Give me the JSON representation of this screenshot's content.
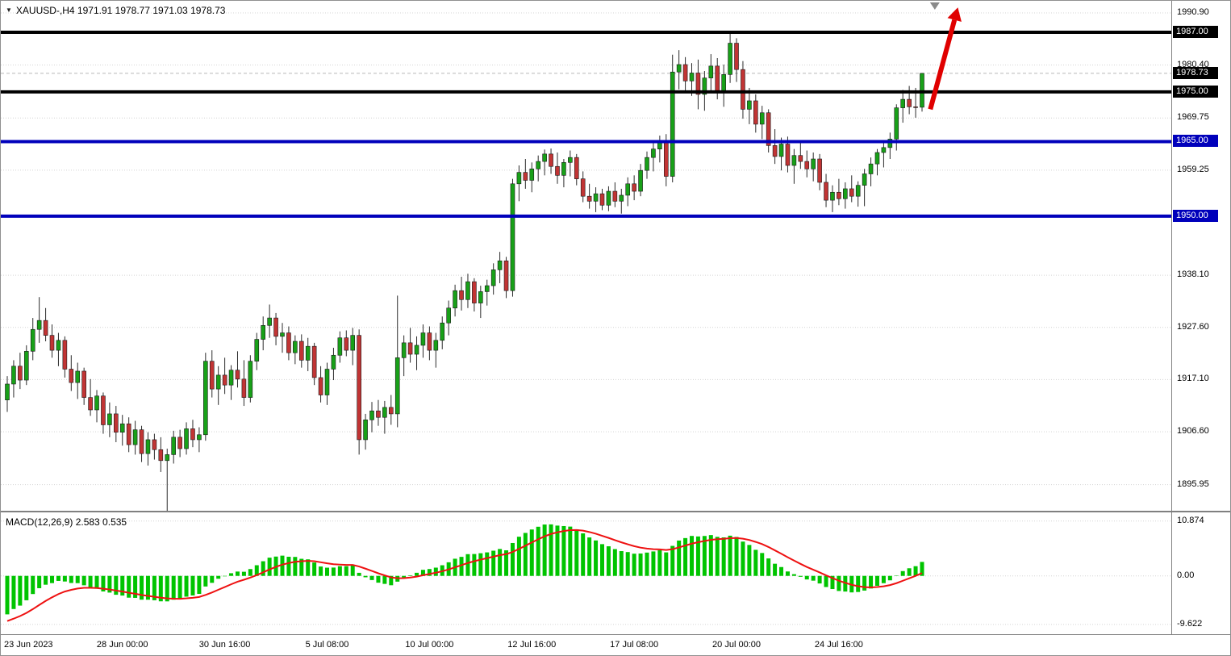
{
  "title": {
    "text": "XAUUSD-,H4 1971.91 1978.77 1971.03 1978.73"
  },
  "colors": {
    "up": "#18a018",
    "down": "#c13434",
    "wick": "#2b2b2b",
    "macd_hist": "#00c400",
    "macd_signal": "#ee1111",
    "grid": "#d4d4d4",
    "current_price_line": "#b6b6b6",
    "tag_black": "#000000",
    "tag_blue": "#0000bb",
    "arrow": "#e00000",
    "shift_marker": "#8a8a8a",
    "axis_text": "#000000"
  },
  "price_axis": {
    "labels": [
      {
        "text": "1990.90",
        "value": 1990.9
      },
      {
        "text": "1980.40",
        "value": 1980.4
      },
      {
        "text": "1969.75",
        "value": 1969.75
      },
      {
        "text": "1959.25",
        "value": 1959.25
      },
      {
        "text": "1938.10",
        "value": 1938.1
      },
      {
        "text": "1927.60",
        "value": 1927.6
      },
      {
        "text": "1917.10",
        "value": 1917.1
      },
      {
        "text": "1906.60",
        "value": 1906.6
      },
      {
        "text": "1895.95",
        "value": 1895.95
      }
    ],
    "tags": [
      {
        "text": "1987.00",
        "value": 1987.0,
        "color": "#000000"
      },
      {
        "text": "1978.73",
        "value": 1978.73,
        "color": "#000000"
      },
      {
        "text": "1975.00",
        "value": 1975.0,
        "color": "#000000"
      },
      {
        "text": "1965.00",
        "value": 1965.0,
        "color": "#0000bb"
      },
      {
        "text": "1950.00",
        "value": 1950.0,
        "color": "#0000bb"
      }
    ]
  },
  "time_axis": {
    "labels": [
      {
        "text": "23 Jun 2023",
        "index": 0
      },
      {
        "text": "28 Jun 00:00",
        "index": 18
      },
      {
        "text": "30 Jun 16:00",
        "index": 34
      },
      {
        "text": "5 Jul 08:00",
        "index": 50
      },
      {
        "text": "10 Jul 00:00",
        "index": 66
      },
      {
        "text": "12 Jul 16:00",
        "index": 82
      },
      {
        "text": "17 Jul 08:00",
        "index": 98
      },
      {
        "text": "20 Jul 00:00",
        "index": 114
      },
      {
        "text": "24 Jul 16:00",
        "index": 130
      }
    ]
  },
  "macd_axis": {
    "labels": [
      {
        "text": "10.874",
        "value": 10.874
      },
      {
        "text": "0.00",
        "value": 0
      },
      {
        "text": "-9.622",
        "value": -9.622
      }
    ]
  },
  "chart_data": {
    "type": "candlestick",
    "symbol": "XAUUSD-",
    "timeframe": "H4",
    "ohlc_current": {
      "open": 1971.91,
      "high": 1978.77,
      "low": 1971.03,
      "close": 1978.73
    },
    "current_price": 1978.73,
    "price_range": {
      "top": 1993.33,
      "bottom": 1890.7
    },
    "macd_range": {
      "top": 12.6,
      "bottom": -11.57
    },
    "hlines": [
      {
        "value": 1987.0,
        "color": "#000000",
        "width": 4
      },
      {
        "value": 1975.0,
        "color": "#000000",
        "width": 4
      },
      {
        "value": 1965.0,
        "color": "#0000bb",
        "width": 4
      },
      {
        "value": 1950.0,
        "color": "#0000bb",
        "width": 4
      }
    ],
    "candles": [
      [
        1913.0,
        1917.8,
        1910.6,
        1916.2
      ],
      [
        1916.2,
        1921.0,
        1913.5,
        1919.8
      ],
      [
        1919.8,
        1922.5,
        1915.2,
        1917.0
      ],
      [
        1917.0,
        1924.0,
        1916.0,
        1922.8
      ],
      [
        1922.8,
        1929.5,
        1921.0,
        1927.2
      ],
      [
        1927.2,
        1933.7,
        1924.5,
        1929.0
      ],
      [
        1929.0,
        1931.5,
        1924.8,
        1926.0
      ],
      [
        1926.0,
        1928.2,
        1921.5,
        1923.0
      ],
      [
        1923.0,
        1926.5,
        1919.8,
        1925.0
      ],
      [
        1925.0,
        1925.8,
        1917.5,
        1919.2
      ],
      [
        1919.2,
        1922.0,
        1914.8,
        1916.5
      ],
      [
        1916.5,
        1920.5,
        1913.2,
        1918.8
      ],
      [
        1918.8,
        1919.5,
        1912.0,
        1913.5
      ],
      [
        1913.5,
        1917.2,
        1909.8,
        1911.0
      ],
      [
        1911.0,
        1915.0,
        1908.5,
        1913.8
      ],
      [
        1913.8,
        1914.5,
        1906.2,
        1908.0
      ],
      [
        1908.0,
        1912.5,
        1905.5,
        1910.2
      ],
      [
        1910.2,
        1911.8,
        1904.5,
        1906.5
      ],
      [
        1906.5,
        1910.0,
        1903.8,
        1908.2
      ],
      [
        1908.2,
        1909.5,
        1902.5,
        1904.0
      ],
      [
        1904.0,
        1908.8,
        1902.0,
        1907.0
      ],
      [
        1907.0,
        1907.8,
        1900.5,
        1902.2
      ],
      [
        1902.2,
        1906.5,
        1899.8,
        1905.0
      ],
      [
        1905.0,
        1906.2,
        1901.0,
        1903.0
      ],
      [
        1903.0,
        1905.5,
        1898.5,
        1900.8
      ],
      [
        1900.8,
        1903.2,
        1890.3,
        1902.0
      ],
      [
        1902.0,
        1906.8,
        1900.2,
        1905.5
      ],
      [
        1905.5,
        1907.0,
        1901.5,
        1903.2
      ],
      [
        1903.2,
        1908.5,
        1902.0,
        1907.2
      ],
      [
        1907.2,
        1909.0,
        1903.5,
        1905.0
      ],
      [
        1905.0,
        1907.5,
        1902.5,
        1906.0
      ],
      [
        1906.0,
        1922.5,
        1904.8,
        1920.8
      ],
      [
        1920.8,
        1923.0,
        1913.5,
        1915.2
      ],
      [
        1915.2,
        1919.8,
        1912.0,
        1918.0
      ],
      [
        1918.0,
        1921.5,
        1914.2,
        1916.0
      ],
      [
        1916.0,
        1920.0,
        1913.0,
        1919.0
      ],
      [
        1919.0,
        1922.8,
        1915.5,
        1917.2
      ],
      [
        1917.2,
        1921.0,
        1911.8,
        1913.5
      ],
      [
        1913.5,
        1922.0,
        1912.5,
        1920.8
      ],
      [
        1920.8,
        1926.5,
        1919.0,
        1925.2
      ],
      [
        1925.2,
        1929.8,
        1923.0,
        1928.0
      ],
      [
        1928.0,
        1932.2,
        1925.5,
        1929.5
      ],
      [
        1929.5,
        1930.5,
        1924.0,
        1925.8
      ],
      [
        1925.8,
        1928.5,
        1922.5,
        1926.5
      ],
      [
        1926.5,
        1927.8,
        1921.0,
        1922.5
      ],
      [
        1922.5,
        1926.0,
        1920.2,
        1924.8
      ],
      [
        1924.8,
        1926.2,
        1919.5,
        1921.0
      ],
      [
        1921.0,
        1925.5,
        1918.8,
        1923.8
      ],
      [
        1923.8,
        1924.5,
        1916.0,
        1917.5
      ],
      [
        1917.5,
        1919.8,
        1912.5,
        1914.0
      ],
      [
        1914.0,
        1920.5,
        1912.0,
        1919.2
      ],
      [
        1919.2,
        1923.5,
        1917.0,
        1922.0
      ],
      [
        1922.0,
        1926.8,
        1920.5,
        1925.5
      ],
      [
        1925.5,
        1927.0,
        1921.8,
        1923.0
      ],
      [
        1923.0,
        1927.5,
        1920.0,
        1926.0
      ],
      [
        1926.0,
        1927.2,
        1902.0,
        1905.0
      ],
      [
        1905.0,
        1910.2,
        1903.0,
        1909.0
      ],
      [
        1909.0,
        1912.6,
        1906.5,
        1910.8
      ],
      [
        1910.8,
        1913.0,
        1907.8,
        1909.5
      ],
      [
        1909.5,
        1912.8,
        1906.2,
        1911.5
      ],
      [
        1911.5,
        1914.0,
        1908.0,
        1910.2
      ],
      [
        1910.2,
        1934.0,
        1907.5,
        1921.5
      ],
      [
        1921.5,
        1926.0,
        1917.8,
        1924.5
      ],
      [
        1924.5,
        1927.5,
        1920.5,
        1922.2
      ],
      [
        1922.2,
        1925.8,
        1919.0,
        1924.0
      ],
      [
        1924.0,
        1928.2,
        1921.5,
        1926.5
      ],
      [
        1926.5,
        1927.8,
        1921.0,
        1923.0
      ],
      [
        1923.0,
        1926.5,
        1919.5,
        1925.0
      ],
      [
        1925.0,
        1929.8,
        1923.2,
        1928.5
      ],
      [
        1928.5,
        1933.0,
        1926.0,
        1931.5
      ],
      [
        1931.5,
        1936.2,
        1929.8,
        1935.0
      ],
      [
        1935.0,
        1937.8,
        1931.0,
        1933.2
      ],
      [
        1933.2,
        1938.4,
        1931.5,
        1936.8
      ],
      [
        1936.8,
        1937.5,
        1930.8,
        1932.5
      ],
      [
        1932.5,
        1936.0,
        1929.5,
        1934.8
      ],
      [
        1934.8,
        1937.2,
        1932.0,
        1936.0
      ],
      [
        1936.0,
        1940.5,
        1934.2,
        1939.2
      ],
      [
        1939.2,
        1942.8,
        1936.5,
        1941.0
      ],
      [
        1941.0,
        1941.8,
        1933.5,
        1935.0
      ],
      [
        1935.0,
        1957.5,
        1933.8,
        1956.5
      ],
      [
        1956.5,
        1960.2,
        1953.0,
        1958.8
      ],
      [
        1958.8,
        1961.5,
        1955.5,
        1957.2
      ],
      [
        1957.2,
        1960.8,
        1954.8,
        1959.5
      ],
      [
        1959.5,
        1962.2,
        1957.0,
        1961.0
      ],
      [
        1961.0,
        1963.4,
        1958.2,
        1962.5
      ],
      [
        1962.5,
        1963.6,
        1958.5,
        1960.0
      ],
      [
        1960.0,
        1962.8,
        1956.5,
        1958.2
      ],
      [
        1958.2,
        1961.5,
        1955.8,
        1960.8
      ],
      [
        1960.8,
        1963.2,
        1958.0,
        1961.8
      ],
      [
        1961.8,
        1962.5,
        1956.2,
        1957.5
      ],
      [
        1957.5,
        1959.0,
        1952.8,
        1954.0
      ],
      [
        1954.0,
        1956.5,
        1951.5,
        1953.0
      ],
      [
        1953.0,
        1955.8,
        1950.8,
        1954.5
      ],
      [
        1954.5,
        1955.5,
        1951.2,
        1952.2
      ],
      [
        1952.2,
        1956.0,
        1951.0,
        1955.0
      ],
      [
        1955.0,
        1956.8,
        1951.8,
        1953.0
      ],
      [
        1953.0,
        1955.5,
        1950.5,
        1954.2
      ],
      [
        1954.2,
        1957.8,
        1952.0,
        1956.5
      ],
      [
        1956.5,
        1958.2,
        1953.2,
        1955.0
      ],
      [
        1955.0,
        1960.5,
        1954.0,
        1959.2
      ],
      [
        1959.2,
        1963.0,
        1957.5,
        1961.8
      ],
      [
        1961.8,
        1964.8,
        1959.0,
        1963.5
      ],
      [
        1963.5,
        1966.2,
        1960.8,
        1965.0
      ],
      [
        1965.0,
        1966.5,
        1956.0,
        1958.0
      ],
      [
        1958.0,
        1982.5,
        1956.8,
        1979.0
      ],
      [
        1979.0,
        1983.4,
        1975.5,
        1980.5
      ],
      [
        1980.5,
        1982.0,
        1974.8,
        1977.2
      ],
      [
        1977.2,
        1980.8,
        1974.2,
        1978.8
      ],
      [
        1978.8,
        1981.5,
        1971.5,
        1974.5
      ],
      [
        1974.5,
        1979.2,
        1971.2,
        1977.8
      ],
      [
        1977.8,
        1982.6,
        1975.0,
        1980.2
      ],
      [
        1980.2,
        1981.8,
        1973.5,
        1975.2
      ],
      [
        1975.2,
        1980.5,
        1972.0,
        1978.5
      ],
      [
        1978.5,
        1986.7,
        1976.8,
        1984.8
      ],
      [
        1984.8,
        1985.8,
        1977.0,
        1979.5
      ],
      [
        1979.5,
        1981.2,
        1969.6,
        1971.5
      ],
      [
        1971.5,
        1975.8,
        1968.5,
        1973.2
      ],
      [
        1973.2,
        1974.5,
        1966.8,
        1968.5
      ],
      [
        1968.5,
        1972.2,
        1965.5,
        1970.8
      ],
      [
        1970.8,
        1971.5,
        1962.8,
        1964.2
      ],
      [
        1964.2,
        1967.5,
        1960.5,
        1962.0
      ],
      [
        1962.0,
        1965.8,
        1959.2,
        1964.5
      ],
      [
        1964.5,
        1966.0,
        1958.8,
        1960.2
      ],
      [
        1960.2,
        1963.5,
        1956.5,
        1962.2
      ],
      [
        1962.2,
        1964.8,
        1959.5,
        1961.0
      ],
      [
        1961.0,
        1963.2,
        1957.8,
        1959.5
      ],
      [
        1959.5,
        1962.8,
        1957.0,
        1961.5
      ],
      [
        1961.5,
        1962.5,
        1955.2,
        1956.8
      ],
      [
        1956.8,
        1958.5,
        1951.8,
        1953.2
      ],
      [
        1953.2,
        1956.2,
        1950.8,
        1954.8
      ],
      [
        1954.8,
        1957.5,
        1952.2,
        1953.5
      ],
      [
        1953.5,
        1956.8,
        1951.5,
        1955.5
      ],
      [
        1955.5,
        1958.2,
        1952.8,
        1954.0
      ],
      [
        1954.0,
        1957.0,
        1951.9,
        1956.2
      ],
      [
        1956.2,
        1959.5,
        1952.0,
        1958.5
      ],
      [
        1958.5,
        1961.8,
        1956.0,
        1960.5
      ],
      [
        1960.5,
        1963.5,
        1958.2,
        1962.8
      ],
      [
        1962.8,
        1965.2,
        1959.8,
        1963.8
      ],
      [
        1963.8,
        1966.8,
        1961.5,
        1965.5
      ],
      [
        1965.5,
        1972.5,
        1963.2,
        1971.8
      ],
      [
        1971.8,
        1975.4,
        1968.8,
        1973.5
      ],
      [
        1973.5,
        1976.2,
        1970.5,
        1972.0
      ],
      [
        1972.0,
        1975.8,
        1969.8,
        1971.9
      ],
      [
        1971.91,
        1978.77,
        1971.03,
        1978.73
      ]
    ],
    "indicator": {
      "name": "MACD",
      "fast": 12,
      "slow": 26,
      "signal": 9,
      "label": "MACD(12,26,9) 2.583 0.535",
      "value": 2.583,
      "signal_value": 0.535,
      "seed_fast_offset": -3.0,
      "seed_slow_offset": 5.5,
      "seed_signal": -9.3
    },
    "annotations": {
      "trend_arrow": {
        "from": {
          "index": 144.3,
          "price": 1971.5
        },
        "to": {
          "index": 148.6,
          "price": 1992.0
        },
        "color": "#e00000"
      },
      "shift_marker": {
        "index": 145.0,
        "color": "#8a8a8a"
      }
    }
  }
}
